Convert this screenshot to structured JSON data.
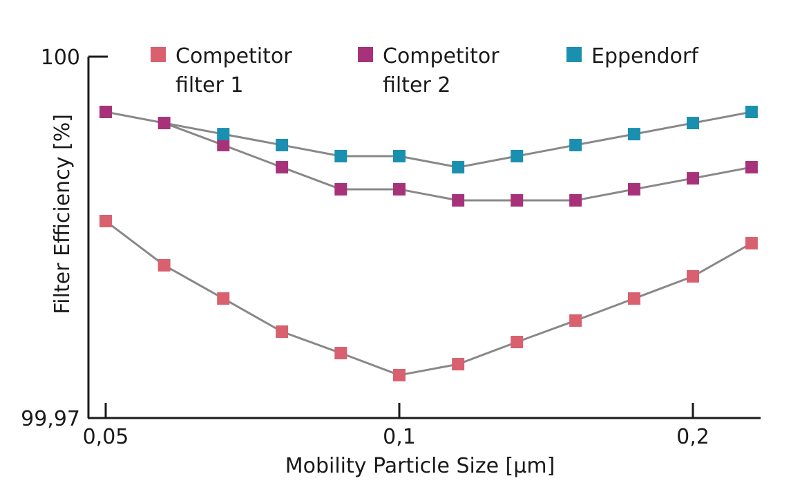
{
  "chart_data": {
    "type": "line",
    "title": "",
    "xlabel": "Mobility Particle Size [µm]",
    "ylabel": "Filter Efficiency [%]",
    "xscale": "log",
    "xlim": [
      0.047,
      0.235
    ],
    "ylim": [
      99.97,
      100
    ],
    "x_ticks": [
      {
        "value": 0.05,
        "label": "0,05"
      },
      {
        "value": 0.1,
        "label": "0,1"
      },
      {
        "value": 0.2,
        "label": "0,2"
      }
    ],
    "y_ticks": [
      {
        "value": 99.97,
        "label": "99,97"
      },
      {
        "value": 100,
        "label": "100"
      }
    ],
    "x": [
      0.05,
      0.0574,
      0.066,
      0.0758,
      0.0871,
      0.1,
      0.1149,
      0.132,
      0.1516,
      0.1741,
      0.2,
      0.2297
    ],
    "legend_position": "top",
    "series": [
      {
        "name": "Competitor filter 1",
        "legend_lines": [
          "Competitor",
          "filter 1"
        ],
        "color": "#d9606f",
        "values": [
          99.98635,
          99.98268,
          99.97992,
          99.97717,
          99.97539,
          99.97356,
          99.97447,
          99.97631,
          99.97809,
          99.97992,
          99.98176,
          99.98451
        ]
      },
      {
        "name": "Competitor filter 2",
        "legend_lines": [
          "Competitor",
          "filter 2"
        ],
        "color": "#a8327a",
        "values": [
          99.99541,
          99.99449,
          99.99266,
          99.99082,
          99.98899,
          99.98899,
          99.98807,
          99.98807,
          99.98807,
          99.98899,
          99.9899,
          99.99082
        ]
      },
      {
        "name": "Eppendorf",
        "legend_lines": [
          "Eppendorf"
        ],
        "color": "#1a8faf",
        "values": [
          null,
          99.99449,
          99.99357,
          99.99266,
          99.99174,
          99.99174,
          99.99082,
          99.99174,
          99.99266,
          99.99357,
          99.99449,
          99.99541
        ]
      }
    ],
    "line_color": "#888888"
  }
}
